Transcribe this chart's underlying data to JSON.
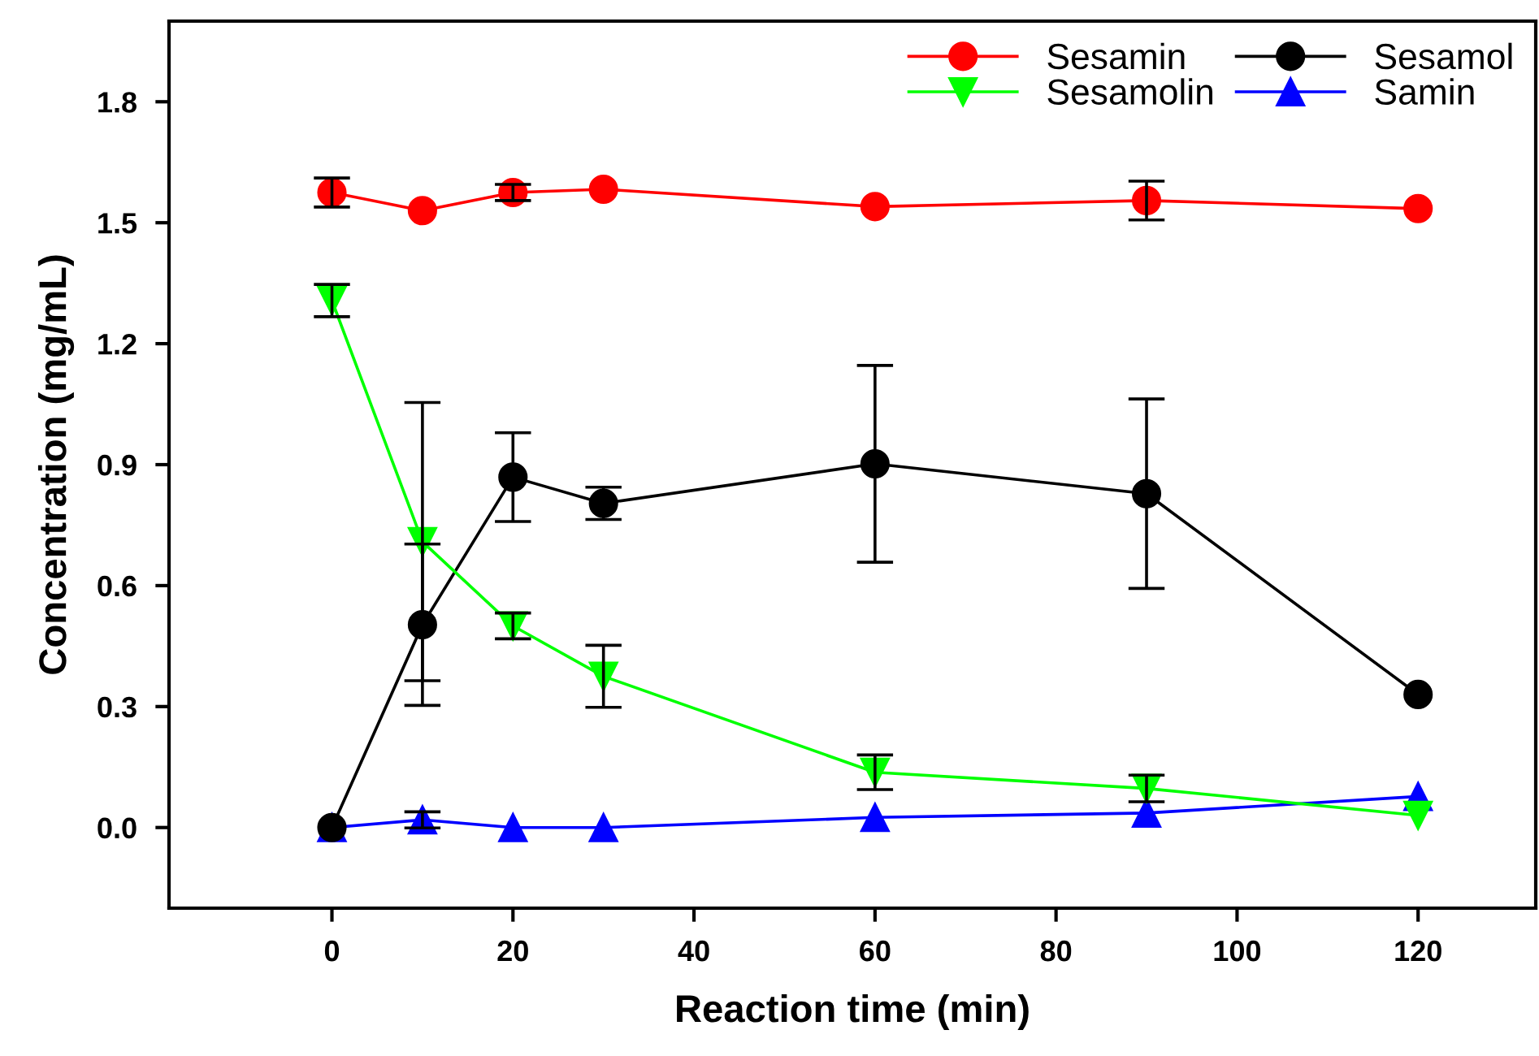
{
  "chart_data": {
    "type": "line",
    "xlabel": "Reaction time (min)",
    "ylabel": "Concentration (mg/mL)",
    "x": [
      0,
      10,
      20,
      30,
      60,
      90,
      120
    ],
    "series": [
      {
        "name": "Sesamin",
        "color": "#ff0000",
        "marker": "circle",
        "values": [
          1.575,
          1.53,
          1.575,
          1.583,
          1.54,
          1.555,
          1.535
        ],
        "errors": [
          0.036,
          null,
          0.02,
          null,
          null,
          0.048,
          null
        ]
      },
      {
        "name": "Sesamolin",
        "color": "#00ff00",
        "marker": "triangle_down",
        "values": [
          1.307,
          0.709,
          0.5,
          0.375,
          0.137,
          0.097,
          0.03
        ],
        "errors": [
          0.04,
          0.345,
          0.032,
          0.077,
          0.043,
          0.033,
          null
        ]
      },
      {
        "name": "Sesamol",
        "color": "#000000",
        "marker": "circle",
        "values": [
          0.0,
          0.503,
          0.869,
          0.804,
          0.902,
          0.828,
          0.33
        ],
        "errors": [
          null,
          0.2,
          0.11,
          0.04,
          0.244,
          0.235,
          null
        ]
      },
      {
        "name": "Samin",
        "color": "#0000ff",
        "marker": "triangle",
        "values": [
          0.0,
          0.019,
          0.0,
          0.0,
          0.025,
          0.036,
          0.077
        ],
        "errors": [
          null,
          0.02,
          null,
          null,
          null,
          null,
          null
        ]
      }
    ],
    "xlim": [
      -18,
      133
    ],
    "ylim": [
      -0.2,
      2.0
    ],
    "xticks": [
      0,
      20,
      40,
      60,
      80,
      100,
      120
    ],
    "yticks": [
      {
        "value": 0,
        "label": "0.0"
      },
      {
        "value": 0.3,
        "label": "0.3"
      },
      {
        "value": 0.6,
        "label": "0.6"
      },
      {
        "value": 0.9,
        "label": "0.9"
      },
      {
        "value": 1.2,
        "label": "1.2"
      },
      {
        "value": 1.5,
        "label": "1.5"
      },
      {
        "value": 1.8,
        "label": "1.8"
      }
    ],
    "grid": false,
    "legend": "top right",
    "line_style": "solid"
  }
}
